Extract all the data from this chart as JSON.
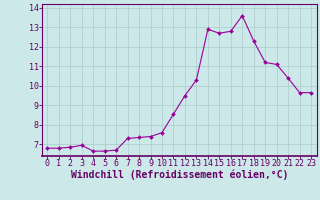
{
  "x": [
    0,
    1,
    2,
    3,
    4,
    5,
    6,
    7,
    8,
    9,
    10,
    11,
    12,
    13,
    14,
    15,
    16,
    17,
    18,
    19,
    20,
    21,
    22,
    23
  ],
  "y": [
    6.8,
    6.8,
    6.85,
    6.95,
    6.65,
    6.65,
    6.7,
    7.3,
    7.35,
    7.4,
    7.6,
    8.55,
    9.5,
    10.3,
    12.9,
    12.7,
    12.8,
    13.6,
    12.3,
    11.2,
    11.1,
    10.4,
    9.65,
    9.65
  ],
  "line_color": "#990099",
  "marker": "D",
  "marker_size": 2.0,
  "linewidth": 0.8,
  "bg_color": "#cce8e8",
  "grid_color": "#aacccc",
  "xlabel": "Windchill (Refroidissement éolien,°C)",
  "xlabel_fontsize": 7.0,
  "tick_fontsize": 6.0,
  "ylim": [
    6.4,
    14.2
  ],
  "xlim": [
    -0.5,
    23.5
  ],
  "yticks": [
    7,
    8,
    9,
    10,
    11,
    12,
    13,
    14
  ],
  "xticks": [
    0,
    1,
    2,
    3,
    4,
    5,
    6,
    7,
    8,
    9,
    10,
    11,
    12,
    13,
    14,
    15,
    16,
    17,
    18,
    19,
    20,
    21,
    22,
    23
  ],
  "spine_color": "#660066",
  "text_color": "#660066"
}
